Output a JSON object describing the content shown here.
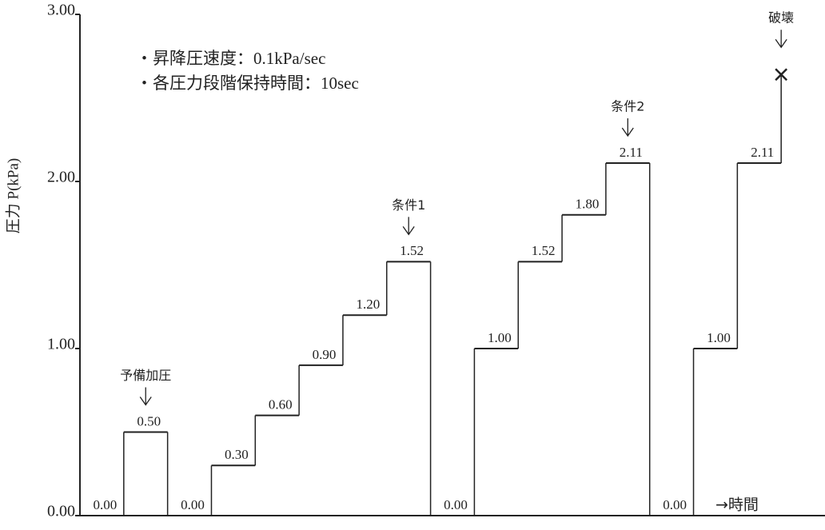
{
  "chart_data": {
    "type": "step",
    "y_label": "圧力 P(kPa)",
    "x_label": "→時間",
    "notes": [
      "・昇降圧速度：0.1kPa/sec",
      "・各圧力段階保持時間：10sec"
    ],
    "xlim": [
      0,
      17
    ],
    "ylim": [
      0,
      3
    ],
    "yticks": [
      {
        "value": 0,
        "label": "0.00"
      },
      {
        "value": 1,
        "label": "1.00"
      },
      {
        "value": 2,
        "label": "2.00"
      },
      {
        "value": 3,
        "label": "3.00"
      }
    ],
    "series": [
      {
        "color": "#222222",
        "x": [
          0,
          1,
          2,
          3,
          4,
          5,
          6,
          7,
          8,
          9,
          10,
          11,
          12,
          13,
          14,
          15,
          16
        ],
        "values": [
          0,
          0.5,
          0,
          0.3,
          0.6,
          0.9,
          1.2,
          1.52,
          0,
          1.0,
          1.52,
          1.8,
          2.11,
          0,
          1.0,
          2.11,
          2.64
        ],
        "value_labels": [
          "0.00",
          "0.50",
          "0.00",
          "0.30",
          "0.60",
          "0.90",
          "1.20",
          "1.52",
          "0.00",
          "1.00",
          "1.52",
          "1.80",
          "2.11",
          "0.00",
          "1.00",
          "2.11",
          null
        ]
      }
    ],
    "annotations": [
      {
        "text": "予備加圧",
        "x": 1.5,
        "y": 0.5
      },
      {
        "text": "条件1",
        "x": 7.5,
        "y": 1.52
      },
      {
        "text": "条件2",
        "x": 12.5,
        "y": 2.11
      },
      {
        "text": "破壊",
        "x": 16,
        "y": 2.64
      }
    ]
  }
}
